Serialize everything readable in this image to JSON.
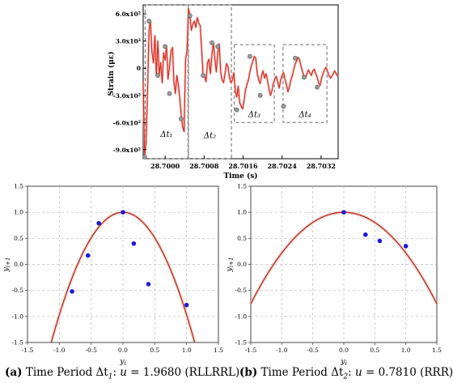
{
  "chart_data": [
    {
      "type": "line",
      "panel": "top",
      "xlabel": "Time (s)",
      "ylabel": "Strain (με)",
      "xticks": [
        "28.7000",
        "28.7008",
        "28.7016",
        "28.7024",
        "28.7032"
      ],
      "xtick_values": [
        28.7,
        28.7008,
        28.7016,
        28.7024,
        28.7032
      ],
      "yticks": [
        "6.0x10²",
        "3.0x10²",
        "0",
        "-3.0x10²",
        "-6.0x10²",
        "-9.0x10²"
      ],
      "ytick_values": [
        600,
        300,
        0,
        -300,
        -600,
        -900
      ],
      "xlim": [
        28.69955,
        28.70355
      ],
      "ylim": [
        -1000,
        700
      ],
      "grid": false,
      "line_color": "#d62a1e",
      "marker_color": "#9a9a9a",
      "interval_labels": [
        "Δt₁",
        "Δt₂",
        "Δt₃",
        "Δt₄"
      ],
      "intervals": [
        {
          "x0": 28.69959,
          "x1": 28.70047,
          "y0": -1000,
          "y1": 700
        },
        {
          "x0": 28.70048,
          "x1": 28.70136,
          "y0": -1000,
          "y1": 700
        },
        {
          "x0": 28.70142,
          "x1": 28.70224,
          "y0": -600,
          "y1": 260
        },
        {
          "x0": 28.70242,
          "x1": 28.70332,
          "y0": -600,
          "y1": 260
        }
      ],
      "series": [
        {
          "x": [
            28.69955,
            28.69958,
            28.69961,
            28.69964,
            28.69967,
            28.6997,
            28.69973,
            28.69976,
            28.69979,
            28.69982,
            28.69985,
            28.69988,
            28.69991,
            28.69994,
            28.69997,
            28.7,
            28.70003,
            28.70006,
            28.70009,
            28.70012,
            28.70015,
            28.70018,
            28.70021,
            28.70024,
            28.70027,
            28.7003,
            28.70033,
            28.70036,
            28.70039,
            28.70042,
            28.70045,
            28.70048,
            28.70051,
            28.70054,
            28.70057,
            28.7006,
            28.70063,
            28.70066,
            28.70069,
            28.70072,
            28.70075,
            28.70078,
            28.70081,
            28.70084,
            28.70087,
            28.7009,
            28.70093,
            28.70096,
            28.70099,
            28.70102,
            28.70105,
            28.70108,
            28.70111,
            28.70114,
            28.70117,
            28.7012,
            28.70123,
            28.70126,
            28.70129,
            28.70132,
            28.70135,
            28.70138,
            28.70141,
            28.70144,
            28.70147,
            28.7015,
            28.70153,
            28.70156,
            28.70159,
            28.70162,
            28.70165,
            28.70168,
            28.70171,
            28.70174,
            28.70177,
            28.7018,
            28.70183,
            28.70186,
            28.70189,
            28.70192,
            28.70195,
            28.70198,
            28.70201,
            28.70204,
            28.70207,
            28.7021,
            28.70213,
            28.70216,
            28.70219,
            28.70222,
            28.70225,
            28.70228,
            28.70231,
            28.70234,
            28.70237,
            28.7024,
            28.70243,
            28.70246,
            28.70249,
            28.70252,
            28.70255,
            28.70258,
            28.70261,
            28.70264,
            28.70267,
            28.7027,
            28.70273,
            28.70276,
            28.70279,
            28.70282,
            28.70285,
            28.70288,
            28.70291,
            28.70294,
            28.70297,
            28.703,
            28.70303,
            28.70306,
            28.70309,
            28.70312,
            28.70315,
            28.70318,
            28.70321,
            28.70324,
            28.70327,
            28.7033,
            28.70333,
            28.70336,
            28.70339,
            28.70342,
            28.70345,
            28.70348,
            28.70351,
            28.70354
          ],
          "y": [
            -150,
            -960,
            -820,
            -250,
            420,
            520,
            180,
            60,
            360,
            -80,
            300,
            -70,
            60,
            -160,
            170,
            90,
            240,
            -120,
            10,
            180,
            230,
            -150,
            -280,
            -80,
            -180,
            -330,
            -520,
            -650,
            -700,
            100,
            200,
            660,
            580,
            420,
            490,
            520,
            450,
            560,
            500,
            470,
            200,
            -80,
            -90,
            -150,
            60,
            100,
            -60,
            150,
            280,
            100,
            -40,
            170,
            270,
            -40,
            -130,
            -160,
            -60,
            50,
            20,
            -100,
            -160,
            -130,
            -50,
            -250,
            -320,
            -200,
            -380,
            -420,
            -450,
            -360,
            -240,
            -180,
            -130,
            -40,
            30,
            80,
            130,
            110,
            -60,
            -130,
            -170,
            -80,
            -30,
            -110,
            -60,
            -130,
            -220,
            -300,
            -250,
            -170,
            -120,
            -90,
            -150,
            -220,
            -130,
            -80,
            -50,
            -120,
            -180,
            -260,
            -210,
            -130,
            -80,
            -10,
            50,
            80,
            120,
            90,
            20,
            -40,
            -90,
            -110,
            -60,
            -20,
            -50,
            -80,
            -30,
            -10,
            -60,
            -100,
            -160,
            -190,
            -110,
            -60,
            -20,
            10,
            -30,
            -80,
            -110,
            -90,
            -60,
            -30,
            -60,
            -90
          ]
        }
      ],
      "markers": [
        {
          "x": 28.69958,
          "y": -980
        },
        {
          "x": 28.69967,
          "y": 520
        },
        {
          "x": 28.69985,
          "y": -80
        },
        {
          "x": 28.7,
          "y": 240
        },
        {
          "x": 28.70009,
          "y": -280
        },
        {
          "x": 28.70033,
          "y": -560
        },
        {
          "x": 28.70051,
          "y": 580
        },
        {
          "x": 28.70078,
          "y": -80
        },
        {
          "x": 28.70096,
          "y": 280
        },
        {
          "x": 28.70108,
          "y": 240
        },
        {
          "x": 28.70147,
          "y": -460
        },
        {
          "x": 28.70174,
          "y": 130
        },
        {
          "x": 28.70195,
          "y": -300
        },
        {
          "x": 28.70243,
          "y": -420
        },
        {
          "x": 28.70267,
          "y": 110
        },
        {
          "x": 28.70285,
          "y": -100
        },
        {
          "x": 28.70312,
          "y": -210
        }
      ]
    },
    {
      "type": "scatter",
      "panel": "a",
      "xlabel": "yi",
      "ylabel": "yi+1",
      "xlim": [
        -1.5,
        1.5
      ],
      "ylim": [
        -1.5,
        1.5
      ],
      "xticks": [
        "-1.5",
        "-1.0",
        "-0.5",
        "0.0",
        "0.5",
        "1.0",
        "1.5"
      ],
      "xtick_values": [
        -1.5,
        -1.0,
        -0.5,
        0.0,
        0.5,
        1.0,
        1.5
      ],
      "yticks": [
        "1.5",
        "1.0",
        "0.5",
        "0.0",
        "-0.5",
        "-1.0",
        "-1.5"
      ],
      "ytick_values": [
        1.5,
        1.0,
        0.5,
        0.0,
        -0.5,
        -1.0,
        -1.5
      ],
      "grid": true,
      "point_color": "#1a1ad6",
      "curve_color": "#b22a1a",
      "curve": {
        "formula": "y = 1 - u x^2",
        "u": 1.968
      },
      "points": {
        "x": [
          -0.8,
          -0.55,
          -0.38,
          0.0,
          0.17,
          0.4,
          1.0
        ],
        "y": [
          -0.52,
          0.17,
          0.79,
          1.0,
          0.4,
          -0.38,
          -0.78
        ]
      }
    },
    {
      "type": "scatter",
      "panel": "b",
      "xlabel": "yi",
      "ylabel": "yi+1",
      "xlim": [
        -1.5,
        1.5
      ],
      "ylim": [
        -1.5,
        1.5
      ],
      "xticks": [
        "-1.5",
        "-1.0",
        "-0.5",
        "0.0",
        "0.5",
        "1.0",
        "1.5"
      ],
      "xtick_values": [
        -1.5,
        -1.0,
        -0.5,
        0.0,
        0.5,
        1.0,
        1.5
      ],
      "yticks": [
        "1.5",
        "1.0",
        "0.5",
        "0.0",
        "-0.5",
        "-1.0",
        "-1.5"
      ],
      "ytick_values": [
        1.5,
        1.0,
        0.5,
        0.0,
        -0.5,
        -1.0,
        -1.5
      ],
      "grid": true,
      "point_color": "#1a1ad6",
      "curve_color": "#b22a1a",
      "curve": {
        "formula": "y = 1 - u x^2",
        "u": 0.781
      },
      "points": {
        "x": [
          0.0,
          0.35,
          0.58,
          1.0
        ],
        "y": [
          1.0,
          0.57,
          0.45,
          0.35
        ]
      }
    }
  ],
  "captions": {
    "a": {
      "label": "(a)",
      "text_1": " Time Period Δt",
      "sub": "1",
      "text_2": ": ",
      "var": "u",
      "text_3": " = 1.9680 (RLLRRL)"
    },
    "b": {
      "label": "(b)",
      "text_1": " Time Period Δt",
      "sub": "2",
      "text_2": ": ",
      "var": "u",
      "text_3": " = 0.7810 (RRR)"
    }
  }
}
